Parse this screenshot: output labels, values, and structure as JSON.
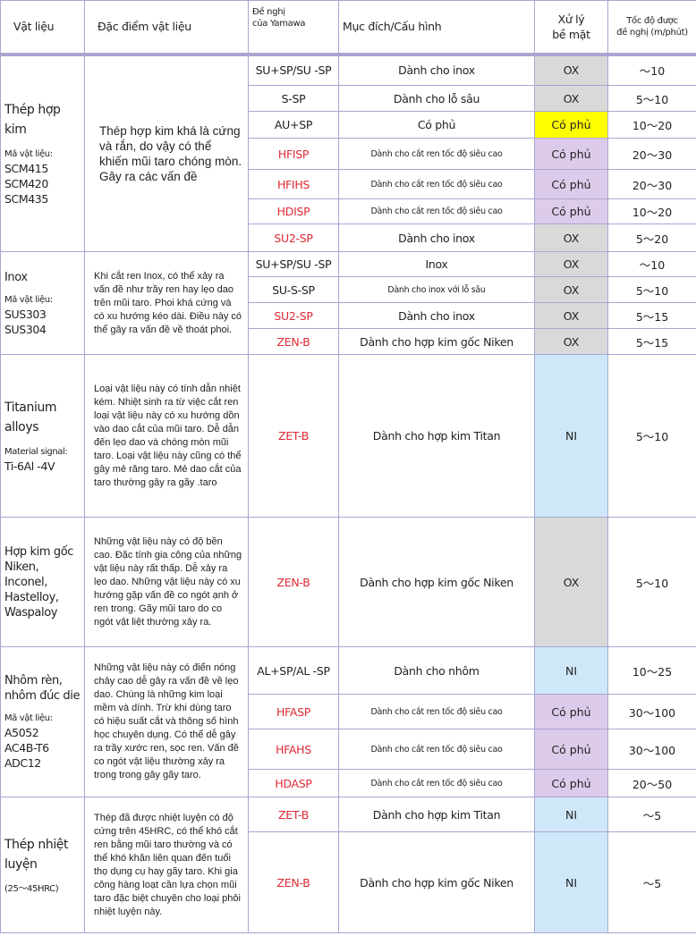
{
  "header": {
    "material": "Vật liệu",
    "characteristics": "Đặc điểm vật liệu",
    "yamawa_line1": "Đề nghị",
    "yamawa_line2": "của Yamawa",
    "purpose": "Mục đích/Cấu hình",
    "surface_line1": "Xử lý",
    "surface_line2": "bề mặt",
    "speed_line1": "Tốc độ được",
    "speed_line2": "đề nghị (m/phút)"
  },
  "colors": {
    "OX": "#d9d9d9",
    "Có phủ": "#dccbea",
    "NI": "#cfe8f9",
    "highlight": "#ffff00",
    "red_code": "#df2a34",
    "border": "#aaa5d3"
  },
  "groups": [
    {
      "material": "Thép hợp kim",
      "material_size": "big",
      "code_label": "Mã vật liệu:",
      "codes": [
        "SCM415",
        "SCM420",
        "SCM435"
      ],
      "description": "Thép hợp kim khá là cứng và rắn, do vậy có thể khiến mũi taro chóng mòn. Gây ra các vấn đề",
      "desc_size": "lg",
      "rows": [
        {
          "code": "SU+SP/SU -SP",
          "red": false,
          "purpose": "Dành cho inox",
          "small": false,
          "surface": "OX",
          "speed": "～10",
          "h": 35
        },
        {
          "code": "S-SP",
          "red": false,
          "purpose": "Dành cho lỗ sâu",
          "small": false,
          "surface": "OX",
          "speed": "5～10",
          "h": 29
        },
        {
          "code": "AU+SP",
          "red": false,
          "purpose": "Có phủ",
          "small": false,
          "surface": "Có phủ",
          "highlight": true,
          "speed": "10～20",
          "h": 30
        },
        {
          "code": "HFISP",
          "red": true,
          "purpose": "Dành cho cắt ren tốc độ siêu cao",
          "small": true,
          "surface": "Có phủ",
          "speed": "20～30",
          "h": 35
        },
        {
          "code": "HFIHS",
          "red": true,
          "purpose": "Dành cho cắt ren tốc độ siêu cao",
          "small": true,
          "surface": "Có phủ",
          "speed": "20～30",
          "h": 33
        },
        {
          "code": "HDISP",
          "red": true,
          "purpose": "Dành cho cắt ren tốc độ siêu cao",
          "small": true,
          "surface": "Có phủ",
          "speed": "10～20",
          "h": 28
        },
        {
          "code": "SU2-SP",
          "red": true,
          "purpose": "Dành cho inox",
          "small": false,
          "surface": "OX",
          "speed": "5～20",
          "h": 31
        }
      ]
    },
    {
      "material": "Inox",
      "material_size": "",
      "code_label": "Mã vật liệu:",
      "codes": [
        "SUS303",
        "SUS304"
      ],
      "description": "Khi cắt ren Inox, có thể xảy ra vấn đề như trầy ren hay lẹo dao trên mũi taro. Phoi khá cứng và có xu hướng kéo dài. Điều này có thể gây ra vấn đề về thoát phoi.",
      "desc_size": "",
      "rows": [
        {
          "code": "SU+SP/SU -SP",
          "red": false,
          "purpose": "Inox",
          "small": false,
          "surface": "OX",
          "speed": "～10",
          "h": 28
        },
        {
          "code": "SU-S-SP",
          "red": false,
          "purpose": "Dành cho inox với lỗ sâu",
          "small": true,
          "surface": "OX",
          "speed": "5～10",
          "h": 29
        },
        {
          "code": "SU2-SP",
          "red": true,
          "purpose": "Dành cho inox",
          "small": false,
          "surface": "OX",
          "speed": "5～15",
          "h": 29
        },
        {
          "code": "ZEN-B",
          "red": true,
          "purpose": "Dành cho hợp kim gốc Niken",
          "small": false,
          "surface": "OX",
          "speed": "5～15",
          "h": 29
        }
      ]
    },
    {
      "material": "Titanium alloys",
      "material_size": "big",
      "code_label": "Material signal:",
      "codes": [
        "Ti-6Al -4V"
      ],
      "description": "Loại vật liệu này có tính dẫn nhiệt kém. Nhiệt sinh ra từ việc cắt ren loại vật liệu này có xu hướng dồn vào dao cắt của mũi taro. Dễ dẫn đến lẹo dao và chóng mòn mũi taro. Loại vật liệu này cũng có thể gây mẻ răng taro. Mẻ dao cắt của taro thường gây ra gãy .taro",
      "desc_size": "",
      "rows": [
        {
          "code": "ZET-B",
          "red": true,
          "purpose": "Dành cho hợp kim Titan",
          "small": false,
          "surface": "NI",
          "speed": "5～10",
          "h": 182
        }
      ]
    },
    {
      "material": "Hợp kim gốc Niken, Inconel, Hastelloy, Waspaloy",
      "material_size": "",
      "code_label": "",
      "codes": [],
      "description": "Những vật liệu này có độ bền cao. Đặc tính gia công của những vật liệu này rất thấp. Dễ xảy ra lẹo dao. Những vật liệu này có xu hướng gặp vấn đề co ngót ạnh ở ren trong. Gãy mũi taro do co ngót vật liệt thường xảy ra.",
      "desc_size": "",
      "rows": [
        {
          "code": "ZEN-B",
          "red": true,
          "purpose": "Dành cho hợp kim gốc Niken",
          "small": false,
          "surface": "OX",
          "speed": "5～10",
          "h": 145
        }
      ]
    },
    {
      "material": "Nhôm rèn, nhôm đúc die",
      "material_size": "",
      "code_label": "Mã vật liệu:",
      "codes": [
        "A5052",
        "AC4B-T6",
        "ADC12"
      ],
      "description": "Những vật liệu này có điển nóng chảy cao dễ gây ra vấn đề về lẹo dao. Chúng là những kim loại mềm và dính. Trừ khi dùng taro có hiệu suất cắt và thông số hình học chuyên dụng. Có thể dễ gây ra trầy xước ren, sọc ren. Vấn đề co ngót vật liệu thường xảy ra trong trong gây gãy taro.",
      "desc_size": "",
      "rows": [
        {
          "code": "AL+SP/AL  -SP",
          "red": false,
          "purpose": "Dành cho nhôm",
          "small": false,
          "surface": "NI",
          "speed": "10～25",
          "h": 53
        },
        {
          "code": "HFASP",
          "red": true,
          "purpose": "Dành cho cắt ren tốc độ siêu cao",
          "small": true,
          "surface": "Có phủ",
          "speed": "30～100",
          "h": 39
        },
        {
          "code": "HFAHS",
          "red": true,
          "purpose": "Dành cho cắt ren tốc độ siêu cao",
          "small": true,
          "surface": "Có phủ",
          "speed": "30～100",
          "h": 45
        },
        {
          "code": "HDASP",
          "red": true,
          "purpose": "Dành cho cắt ren tốc độ siêu cao",
          "small": true,
          "surface": "Có phủ",
          "speed": "20～50",
          "h": 31
        }
      ]
    },
    {
      "material": "Thép nhiệt luyện",
      "material_size": "big",
      "code_label": "(25～45HRC)",
      "codes": [],
      "description": "Thép đã được nhiệt luyện có độ cứng trên 45HRC, có thể khó cắt ren bằng mũi taro thường và có thể khó khăn liên quan đến tuổi thọ dụng cụ hay gãy taro. Khi gia công hàng loạt cần lựa chọn mũi taro đặc biệt chuyên cho loại phôi nhiệt luyện này.",
      "desc_size": "",
      "rows": [
        {
          "code": "ZET-B",
          "red": true,
          "purpose": "Dành cho hợp kim Titan",
          "small": false,
          "surface": "NI",
          "speed": "～5",
          "h": 39
        },
        {
          "code": "ZEN-B",
          "red": true,
          "purpose": "Dành cho hợp kim gốc Niken",
          "small": false,
          "surface": "NI",
          "speed": "～5",
          "h": 113
        }
      ]
    }
  ]
}
